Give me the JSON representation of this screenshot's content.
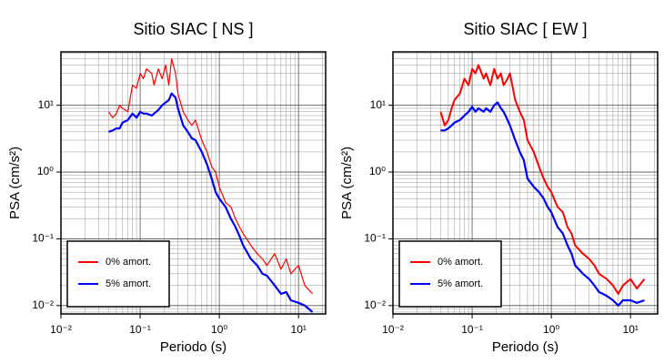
{
  "chart_data": [
    {
      "type": "line",
      "title": "Sitio SIAC [ NS ]",
      "xlabel": "Periodo (s)",
      "ylabel": "PSA (cm/s²)",
      "log_x": true,
      "log_y": true,
      "grid": true,
      "legend": "lower left",
      "xlim": [
        0.01,
        22
      ],
      "ylim": [
        0.0075,
        63
      ],
      "xticks": [
        {
          "value": 0.01,
          "label": "10⁻²"
        },
        {
          "value": 0.1,
          "label": "10⁻¹"
        },
        {
          "value": 1,
          "label": "10⁰"
        },
        {
          "value": 10,
          "label": "10¹"
        }
      ],
      "yticks": [
        {
          "value": 0.01,
          "label": "10⁻²"
        },
        {
          "value": 0.1,
          "label": "10⁻¹"
        },
        {
          "value": 1,
          "label": "10⁰"
        },
        {
          "value": 10,
          "label": "10¹"
        }
      ],
      "x": [
        0.04,
        0.045,
        0.05,
        0.055,
        0.06,
        0.07,
        0.08,
        0.09,
        0.1,
        0.11,
        0.12,
        0.14,
        0.15,
        0.17,
        0.19,
        0.21,
        0.23,
        0.25,
        0.28,
        0.3,
        0.35,
        0.4,
        0.45,
        0.5,
        0.6,
        0.7,
        0.8,
        0.9,
        1.0,
        1.2,
        1.4,
        1.6,
        1.8,
        2,
        2.5,
        3,
        3.5,
        4,
        5,
        6,
        7,
        8,
        10,
        12,
        15
      ],
      "series": [
        {
          "name": "0% amort.",
          "color": "#ff0000",
          "width": 1.2,
          "values": [
            8,
            6.5,
            7.5,
            10,
            9,
            8,
            20,
            18,
            30,
            25,
            35,
            30,
            20,
            35,
            25,
            40,
            20,
            50,
            30,
            15,
            8,
            6,
            5,
            6,
            3,
            2,
            1.2,
            1,
            0.6,
            0.35,
            0.3,
            0.2,
            0.15,
            0.12,
            0.08,
            0.06,
            0.05,
            0.04,
            0.06,
            0.035,
            0.05,
            0.03,
            0.04,
            0.02,
            0.015
          ]
        },
        {
          "name": "5% amort.",
          "color": "#0000ff",
          "width": 2.2,
          "values": [
            4,
            4.2,
            4.5,
            4.5,
            5.5,
            6,
            7.5,
            6.5,
            8,
            7.5,
            7.5,
            7,
            7.5,
            8.5,
            10,
            11,
            12,
            15,
            13,
            9,
            5,
            4,
            3.2,
            3,
            2,
            1.3,
            0.8,
            0.5,
            0.4,
            0.3,
            0.2,
            0.15,
            0.11,
            0.08,
            0.05,
            0.04,
            0.03,
            0.028,
            0.02,
            0.015,
            0.016,
            0.012,
            0.011,
            0.01,
            0.008
          ]
        }
      ]
    },
    {
      "type": "line",
      "title": "Sitio SIAC [ EW ]",
      "xlabel": "Periodo (s)",
      "ylabel": "PSA (cm/s²)",
      "log_x": true,
      "log_y": true,
      "grid": true,
      "legend": "lower left",
      "xlim": [
        0.01,
        22
      ],
      "ylim": [
        0.0075,
        63
      ],
      "xticks": [
        {
          "value": 0.01,
          "label": "10⁻²"
        },
        {
          "value": 0.1,
          "label": "10⁻¹"
        },
        {
          "value": 1,
          "label": "10⁰"
        },
        {
          "value": 10,
          "label": "10¹"
        }
      ],
      "yticks": [
        {
          "value": 0.01,
          "label": "10⁻²"
        },
        {
          "value": 0.1,
          "label": "10⁻¹"
        },
        {
          "value": 1,
          "label": "10⁰"
        },
        {
          "value": 10,
          "label": "10¹"
        }
      ],
      "x": [
        0.04,
        0.045,
        0.05,
        0.055,
        0.06,
        0.07,
        0.08,
        0.09,
        0.1,
        0.11,
        0.12,
        0.14,
        0.15,
        0.17,
        0.19,
        0.21,
        0.23,
        0.25,
        0.28,
        0.3,
        0.35,
        0.4,
        0.45,
        0.5,
        0.6,
        0.7,
        0.8,
        0.9,
        1.0,
        1.2,
        1.4,
        1.6,
        1.8,
        2,
        2.5,
        3,
        3.5,
        4,
        5,
        6,
        7,
        8,
        10,
        12,
        15
      ],
      "series": [
        {
          "name": "0% amort.",
          "color": "#ff0000",
          "width": 2,
          "values": [
            8,
            5,
            6,
            9,
            12,
            15,
            25,
            20,
            35,
            30,
            40,
            25,
            30,
            20,
            35,
            25,
            30,
            20,
            25,
            30,
            12,
            8,
            6,
            3,
            2,
            1.2,
            0.8,
            0.6,
            0.5,
            0.3,
            0.25,
            0.15,
            0.12,
            0.08,
            0.06,
            0.05,
            0.04,
            0.03,
            0.025,
            0.02,
            0.015,
            0.02,
            0.025,
            0.018,
            0.025
          ]
        },
        {
          "name": "5% amort.",
          "color": "#0000ff",
          "width": 2.2,
          "values": [
            4.2,
            4.2,
            4.5,
            5,
            5.5,
            6,
            7,
            8,
            9.5,
            8,
            9,
            8,
            9,
            8,
            10,
            11,
            9,
            8,
            6,
            5,
            3,
            2,
            1.5,
            0.8,
            0.6,
            0.5,
            0.4,
            0.3,
            0.25,
            0.15,
            0.12,
            0.08,
            0.06,
            0.04,
            0.03,
            0.025,
            0.02,
            0.016,
            0.014,
            0.012,
            0.01,
            0.012,
            0.012,
            0.011,
            0.012
          ]
        }
      ]
    }
  ]
}
